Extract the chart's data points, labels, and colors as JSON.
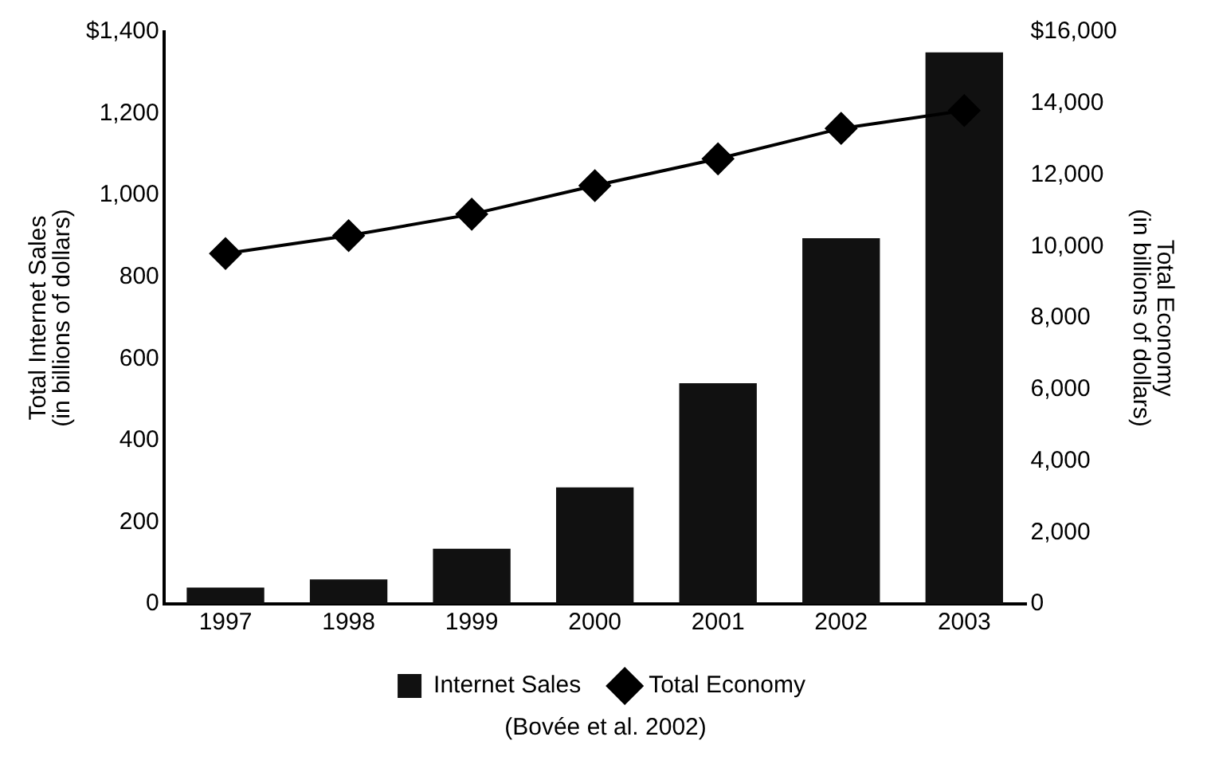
{
  "chart_data": {
    "type": "bar",
    "categories": [
      "1997",
      "1998",
      "1999",
      "2000",
      "2001",
      "2002",
      "2003"
    ],
    "series": [
      {
        "name": "Internet Sales",
        "color": "#111111",
        "values": [
          40,
          60,
          135,
          285,
          540,
          895,
          1350
        ]
      },
      {
        "name": "Total Economy",
        "type": "line",
        "axis": "y2",
        "color": "#000000",
        "marker": "diamond",
        "line_style": "solid",
        "values": [
          9800,
          10300,
          10900,
          11700,
          12450,
          13300,
          13800
        ]
      }
    ],
    "ylabel": "Total Internet Sales\n(in billions of dollars)",
    "y2label": "Total Economy\n(in billions of dollars)",
    "ylim": [
      0,
      1400
    ],
    "yticks": [
      0,
      200,
      400,
      600,
      800,
      {
        "value": 1000,
        "label": "1,000"
      },
      {
        "value": 1200,
        "label": "1,200"
      },
      {
        "value": 1400,
        "label": "$1,400"
      }
    ],
    "y2lim": [
      0,
      16000
    ],
    "y2ticks": [
      0,
      {
        "value": 2000,
        "label": "2,000"
      },
      {
        "value": 4000,
        "label": "4,000"
      },
      {
        "value": 6000,
        "label": "6,000"
      },
      {
        "value": 8000,
        "label": "8,000"
      },
      {
        "value": 10000,
        "label": "10,000"
      },
      {
        "value": 12000,
        "label": "12,000"
      },
      {
        "value": 14000,
        "label": "14,000"
      },
      {
        "value": 16000,
        "label": "$16,000"
      }
    ],
    "grid": false,
    "legend": "bottom",
    "annotations": [
      "(Bovée et al. 2002)"
    ]
  }
}
